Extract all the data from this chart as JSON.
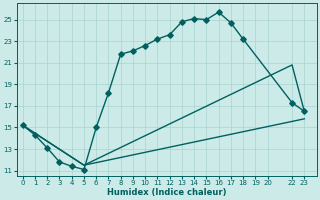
{
  "xlabel": "Humidex (Indice chaleur)",
  "bg_color": "#cceae8",
  "grid_color": "#aad4d0",
  "line_color": "#006060",
  "xlim": [
    -0.5,
    24.0
  ],
  "ylim": [
    10.5,
    26.5
  ],
  "xticks": [
    0,
    1,
    2,
    3,
    4,
    5,
    6,
    7,
    8,
    9,
    10,
    11,
    12,
    13,
    14,
    15,
    16,
    17,
    18,
    19,
    20,
    22,
    23
  ],
  "yticks": [
    11,
    13,
    15,
    17,
    19,
    21,
    23,
    25
  ],
  "curve1_x": [
    0,
    1,
    2,
    3,
    4,
    5,
    6,
    7,
    8,
    9,
    10,
    11,
    12,
    13,
    14,
    15,
    16,
    17,
    18,
    22,
    23
  ],
  "curve1_y": [
    15.2,
    14.3,
    13.1,
    11.8,
    11.4,
    11.1,
    15.0,
    18.2,
    21.8,
    22.1,
    22.6,
    23.2,
    23.6,
    24.8,
    25.1,
    25.0,
    25.7,
    24.7,
    23.2,
    17.3,
    16.5
  ],
  "curve2_x": [
    0,
    5,
    23
  ],
  "curve2_y": [
    15.2,
    11.5,
    15.8
  ],
  "curve3_x": [
    0,
    5,
    22,
    23
  ],
  "curve3_y": [
    15.2,
    11.5,
    20.8,
    16.5
  ],
  "lw": 1.0,
  "ms": 2.8
}
